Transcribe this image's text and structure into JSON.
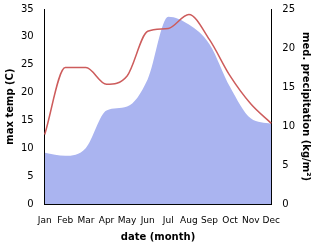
{
  "chart_data": {
    "type": "line",
    "xlabel": "date (month)",
    "ylabel": "max temp (C)",
    "y2label": "med. precipitation (kg/m²)",
    "categories": [
      "Jan",
      "Feb",
      "Mar",
      "Apr",
      "May",
      "Jun",
      "Jul",
      "Aug",
      "Sep",
      "Oct",
      "Nov",
      "Dec"
    ],
    "series": [
      {
        "type": "line",
        "color": "#cd5c5c",
        "values": [
          12.5,
          24.5,
          24.5,
          21.5,
          23,
          31,
          31.5,
          34,
          29.5,
          23,
          18,
          14.5
        ]
      },
      {
        "type": "area",
        "color": "#aab4f0",
        "axis": "y2",
        "values": [
          6.6,
          6.2,
          7.2,
          12,
          12.5,
          16,
          24,
          23,
          20.5,
          15,
          11,
          10.3
        ]
      }
    ],
    "ylim": [
      0,
      35
    ],
    "yticks": [
      0,
      5,
      10,
      15,
      20,
      25,
      30,
      35
    ],
    "y2lim": [
      0,
      25
    ],
    "y2ticks": [
      0,
      5,
      10,
      15,
      20,
      25
    ],
    "grid": false
  }
}
